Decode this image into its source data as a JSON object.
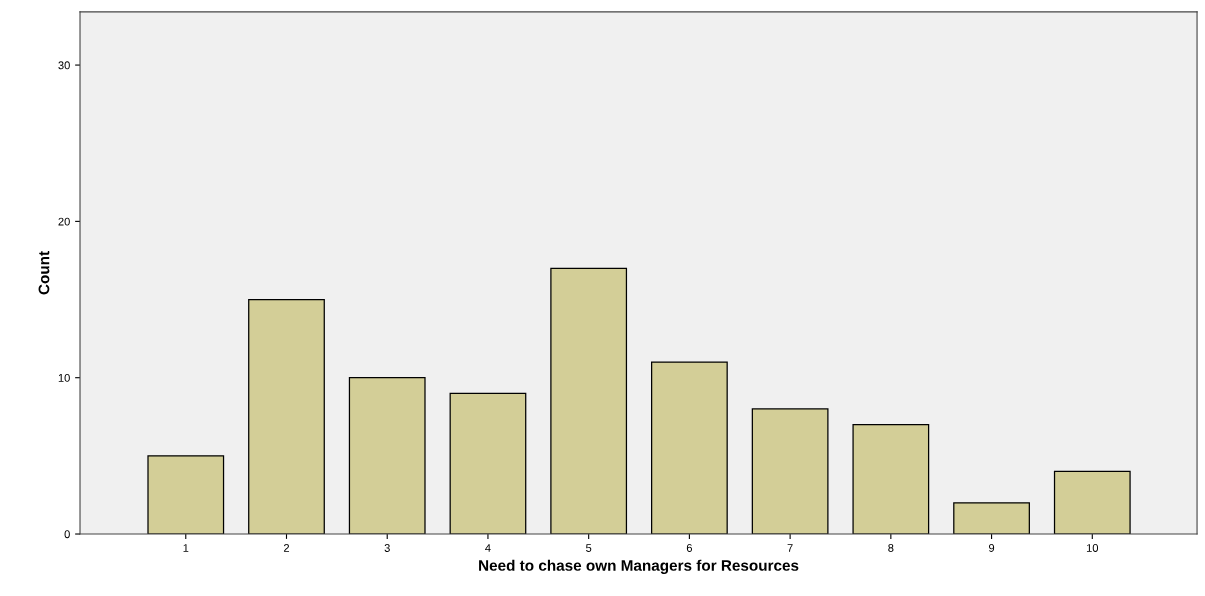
{
  "chart_data": {
    "type": "bar",
    "xlabel": "Need to chase own Managers for Resources",
    "ylabel": "Count",
    "categories": [
      "1",
      "2",
      "3",
      "4",
      "5",
      "6",
      "7",
      "8",
      "9",
      "10"
    ],
    "values": [
      5,
      15,
      10,
      9,
      17,
      11,
      8,
      7,
      2,
      4
    ],
    "color": "#d3ce97",
    "ylim": [
      0,
      33.4
    ],
    "yticks": [
      0,
      10,
      20,
      30
    ],
    "grid": false,
    "legend": false
  }
}
